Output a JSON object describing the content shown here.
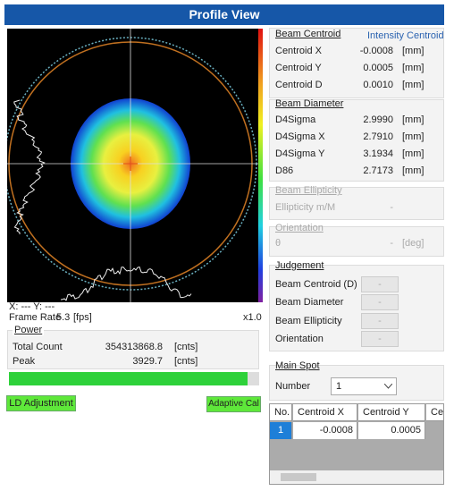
{
  "header": {
    "title": "Profile View"
  },
  "viewer": {
    "cursor": "X: --- Y: ---",
    "frame_rate_label": "Frame Rate",
    "frame_rate": "5.3",
    "frame_rate_unit": "[fps]",
    "zoom": "x1.0"
  },
  "power": {
    "title": "Power",
    "rows": [
      [
        "Total Count",
        "354313868.8",
        "[cnts]"
      ],
      [
        "Peak",
        "3929.7",
        "[cnts]"
      ]
    ]
  },
  "buttons": {
    "ld_adjustment": "LD Adjustment",
    "adaptive_cal": "Adaptive Cal"
  },
  "beam_centroid": {
    "title": "Beam Centroid",
    "mode": "Intensity Centroid",
    "rows": [
      [
        "Centroid X",
        "-0.0008",
        "[mm]"
      ],
      [
        "Centroid Y",
        "0.0005",
        "[mm]"
      ],
      [
        "Centroid D",
        "0.0010",
        "[mm]"
      ]
    ]
  },
  "beam_diameter": {
    "title": "Beam Diameter",
    "rows": [
      [
        "D4Sigma",
        "2.9990",
        "[mm]"
      ],
      [
        "D4Sigma X",
        "2.7910",
        "[mm]"
      ],
      [
        "D4Sigma Y",
        "3.1934",
        "[mm]"
      ],
      [
        "D86",
        "2.7173",
        "[mm]"
      ]
    ]
  },
  "beam_ellipticity": {
    "title": "Beam Ellipticity",
    "rows": [
      [
        "Ellipticity m/M",
        "-"
      ]
    ]
  },
  "orientation": {
    "title": "Orientation",
    "rows": [
      [
        "θ",
        "-",
        "[deg]"
      ]
    ]
  },
  "judgement": {
    "title": "Judgement",
    "rows": [
      [
        "Beam Centroid (D)",
        "-"
      ],
      [
        "Beam Diameter",
        "-"
      ],
      [
        "Beam Ellipticity",
        "-"
      ],
      [
        "Orientation",
        "-"
      ]
    ]
  },
  "main_spot": {
    "title": "Main Spot",
    "number_label": "Number",
    "number": "1"
  },
  "table": {
    "columns": [
      "No.",
      "Centroid X",
      "Centroid Y",
      "Ce"
    ],
    "rows": [
      [
        "1",
        "-0.0008",
        "0.0005"
      ]
    ]
  }
}
